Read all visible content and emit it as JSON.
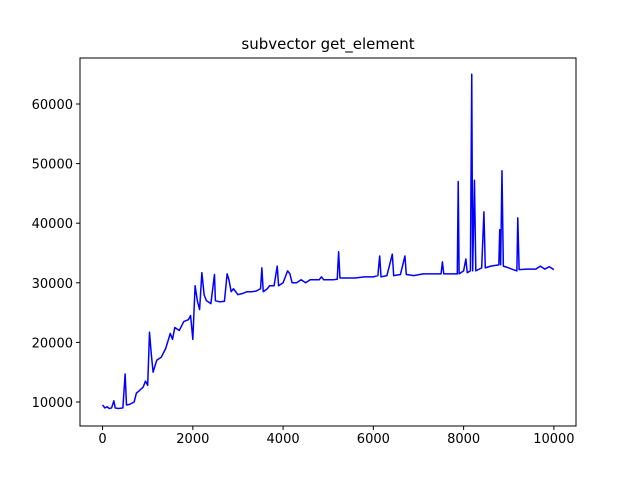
{
  "chart_data": {
    "type": "line",
    "title": "subvector get_element",
    "x": [
      0,
      50,
      100,
      150,
      200,
      250,
      280,
      350,
      450,
      500,
      530,
      600,
      700,
      750,
      800,
      900,
      950,
      1000,
      1040,
      1080,
      1120,
      1200,
      1300,
      1400,
      1500,
      1550,
      1600,
      1700,
      1800,
      1900,
      1950,
      2000,
      2050,
      2100,
      2150,
      2200,
      2250,
      2300,
      2400,
      2480,
      2500,
      2600,
      2700,
      2760,
      2800,
      2850,
      2900,
      3000,
      3100,
      3200,
      3300,
      3400,
      3500,
      3530,
      3560,
      3650,
      3700,
      3800,
      3870,
      3900,
      4000,
      4100,
      4150,
      4200,
      4300,
      4400,
      4500,
      4600,
      4700,
      4800,
      4850,
      4900,
      5000,
      5100,
      5200,
      5230,
      5260,
      5400,
      5600,
      5800,
      6000,
      6100,
      6140,
      6170,
      6300,
      6420,
      6450,
      6600,
      6700,
      6730,
      6900,
      7100,
      7300,
      7500,
      7530,
      7560,
      7700,
      7860,
      7880,
      7900,
      8000,
      8050,
      8080,
      8150,
      8180,
      8200,
      8240,
      8270,
      8400,
      8450,
      8480,
      8600,
      8780,
      8800,
      8820,
      8850,
      8880,
      9000,
      9100,
      9180,
      9200,
      9230,
      9400,
      9600,
      9700,
      9800,
      9900,
      10000
    ],
    "series": [
      {
        "color": "#0000ff",
        "values": [
          9500,
          9000,
          9200,
          8900,
          9000,
          10200,
          9000,
          8900,
          9000,
          14700,
          9500,
          9600,
          10000,
          11500,
          11800,
          12500,
          13500,
          12800,
          21700,
          18000,
          15000,
          17000,
          17500,
          19000,
          21500,
          20500,
          22500,
          22000,
          23500,
          23800,
          24500,
          20500,
          29500,
          27000,
          25500,
          31700,
          28000,
          27000,
          26500,
          31400,
          27000,
          26800,
          26900,
          31500,
          30500,
          28500,
          29000,
          28000,
          28200,
          28500,
          28500,
          28600,
          29000,
          32500,
          28500,
          29000,
          29500,
          29500,
          32800,
          29500,
          30000,
          32000,
          31500,
          30000,
          30000,
          30500,
          30000,
          30500,
          30500,
          30500,
          31000,
          30500,
          30500,
          30500,
          30600,
          35200,
          30800,
          30800,
          30800,
          31000,
          31000,
          31200,
          34500,
          31000,
          31200,
          34800,
          31200,
          31400,
          34500,
          31400,
          31200,
          31500,
          31500,
          31500,
          33500,
          31500,
          31500,
          31500,
          47000,
          31500,
          32000,
          34000,
          31700,
          32000,
          65000,
          32000,
          47200,
          32000,
          32500,
          41900,
          32500,
          32800,
          33000,
          38900,
          33000,
          48800,
          32800,
          32500,
          32200,
          32000,
          40900,
          32200,
          32300,
          32300,
          32800,
          32300,
          32700,
          32200
        ]
      }
    ],
    "xlim": [
      -500,
      10490
    ],
    "ylim": [
      5970,
      67720
    ],
    "xticks": [
      0,
      2000,
      4000,
      6000,
      8000,
      10000
    ],
    "yticks": [
      10000,
      20000,
      30000,
      40000,
      50000,
      60000
    ]
  }
}
